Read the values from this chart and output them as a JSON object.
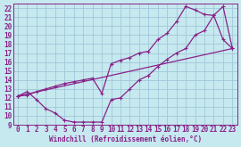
{
  "xlabel": "Windchill (Refroidissement éolien,°C)",
  "bg_color": "#c6e8ef",
  "grid_color": "#a0c8d8",
  "line_color": "#882288",
  "spine_color": "#882288",
  "xlim": [
    -0.5,
    23.5
  ],
  "ylim": [
    9,
    22.5
  ],
  "xticks": [
    0,
    1,
    2,
    3,
    4,
    5,
    6,
    7,
    8,
    9,
    10,
    11,
    12,
    13,
    14,
    15,
    16,
    17,
    18,
    19,
    20,
    21,
    22,
    23
  ],
  "yticks": [
    9,
    10,
    11,
    12,
    13,
    14,
    15,
    16,
    17,
    18,
    19,
    20,
    21,
    22
  ],
  "line1_x": [
    0,
    1,
    2,
    3,
    4,
    5,
    6,
    7,
    8,
    9,
    10,
    11,
    12,
    13,
    14,
    15,
    16,
    17,
    18,
    19,
    20,
    21,
    22,
    23
  ],
  "line1_y": [
    12.2,
    12.7,
    11.8,
    10.8,
    10.3,
    9.5,
    9.3,
    9.3,
    9.3,
    9.3,
    11.8,
    12.0,
    13.0,
    14.0,
    14.5,
    15.5,
    16.3,
    17.0,
    17.5,
    19.0,
    19.5,
    21.2,
    18.5,
    17.5
  ],
  "line2_x": [
    0,
    1,
    2,
    3,
    4,
    5,
    6,
    7,
    8,
    9,
    10,
    11,
    12,
    13,
    14,
    15,
    16,
    17,
    18,
    19,
    20,
    21,
    22,
    23
  ],
  "line2_y": [
    12.2,
    12.3,
    12.7,
    13.0,
    13.3,
    13.6,
    13.8,
    14.0,
    14.2,
    12.5,
    15.8,
    16.2,
    16.5,
    17.0,
    17.2,
    18.5,
    19.2,
    20.5,
    22.2,
    21.8,
    21.3,
    21.2,
    22.2,
    17.5
  ],
  "line3_x": [
    0,
    23
  ],
  "line3_y": [
    12.2,
    17.5
  ],
  "xlabel_fontsize": 5.5,
  "tick_fontsize": 5.5,
  "linewidth": 0.9,
  "markersize": 3.0
}
